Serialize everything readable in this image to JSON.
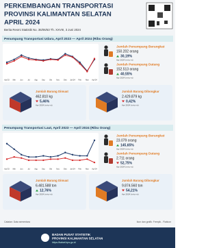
{
  "header": {
    "title_lines": [
      "PERKEMBANGAN TRANSPORTASI",
      "PROVINSI KALIMANTAN SELATAN",
      "APRIL 2024"
    ],
    "subtitle": "Berita Resmi Statistik No. 35/06/63 Th. XXVIII, 3 Juni 2024"
  },
  "sections": [
    {
      "title": "Penumpang Transportasi Udara, April 2023 — April 2024 (Ribu Orang)",
      "chart": {
        "type": "line",
        "categories": [
          "Apr'23",
          "Mei",
          "Jun",
          "Jul",
          "Agu",
          "Sep",
          "Okt",
          "Nov",
          "Des",
          "Jan'24",
          "Feb",
          "Mar",
          "Apr'24"
        ],
        "ylim": [
          90,
          190
        ],
        "series": [
          {
            "color": "#1f3a6b",
            "values": [
              140,
              150,
              165,
              155,
              150,
              148,
              152,
              150,
              170,
              160,
              140,
              110,
              150
            ]
          },
          {
            "color": "#d62828",
            "values": [
              135,
              145,
              160,
              150,
              148,
              145,
              150,
              148,
              165,
              158,
              135,
              108,
              153
            ]
          }
        ]
      },
      "stats": [
        {
          "label": "Jumlah Penumpang Berangkat",
          "value": "150.202 orang",
          "change": "30,19%",
          "direction": "up",
          "period": "Apr 2024 (m-to-m)"
        },
        {
          "label": "Jumlah Penumpang Datang",
          "value": "152.513 orang",
          "change": "40,55%",
          "direction": "up",
          "period": "Apr 2024 (m-to-m)"
        },
        {
          "label": "Jumlah Barang Dimuat",
          "value": "462.810 kg",
          "change": "5,46%",
          "direction": "down",
          "period": "Apr 2024 (m-to-m)"
        },
        {
          "label": "Jumlah Barang Dibongkar",
          "value": "2.429.879 kg",
          "change": "0,42%",
          "direction": "down",
          "period": "Apr 2024 (m-to-m)"
        }
      ]
    },
    {
      "title": "Penumpang Transportasi Laut, April 2023 — April 2024 (Ribu Orang)",
      "chart": {
        "type": "line",
        "categories": [
          "Apr'23",
          "Mei",
          "Jun",
          "Jul",
          "Agu",
          "Sep",
          "Okt",
          "Nov",
          "Des",
          "Jan'24",
          "Feb",
          "Mar",
          "Apr'24"
        ],
        "ylim": [
          0,
          26
        ],
        "series": [
          {
            "color": "#1f3a6b",
            "values": [
              20,
              15,
              10,
              8,
              8,
              9,
              8,
              9,
              12,
              10,
              9,
              9,
              23
            ]
          },
          {
            "color": "#d62828",
            "values": [
              6,
              8,
              7,
              5,
              5,
              5,
              6,
              6,
              7,
              5,
              5,
              6,
              3
            ]
          }
        ]
      },
      "stats": [
        {
          "label": "Jumlah Penumpang Berangkat",
          "value": "23.079 orang",
          "change": "145,65%",
          "direction": "up",
          "period": "Apr 2024 (m-to-m)"
        },
        {
          "label": "Jumlah Penumpang Datang",
          "value": "2.711 orang",
          "change": "52,75%",
          "direction": "down",
          "period": "Apr 2024 (m-to-m)"
        },
        {
          "label": "Jumlah Barang Dimuat",
          "value": "6.481.588 ton",
          "change": "12,76%",
          "direction": "up",
          "period": "Apr 2024 (m-to-m)"
        },
        {
          "label": "Jumlah Barang Dibongkar",
          "value": "9.874.560 ton",
          "change": "54,21%",
          "direction": "down",
          "period": "Apr 2024 (m-to-m)"
        }
      ]
    }
  ],
  "note": "Catatan: Data sementara",
  "credit": "Ikon dan grafik: Freepik - Flaticon",
  "footer": {
    "org_lines": [
      "BADAN PUSAT STATISTIK",
      "PROVINSI KALIMANTAN SELATAN"
    ],
    "url": "https://kalsel.bps.go.id"
  }
}
